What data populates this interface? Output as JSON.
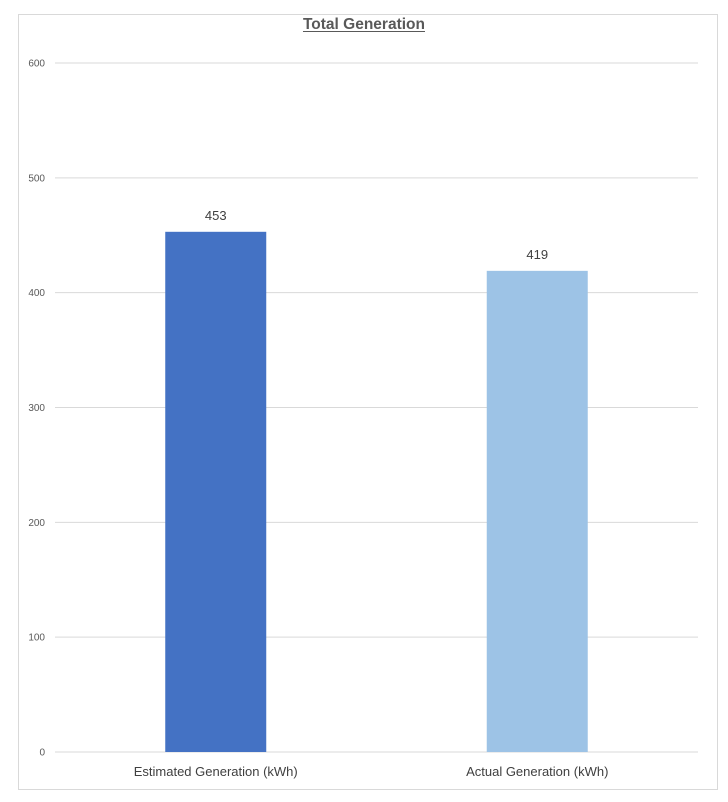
{
  "chart_data": {
    "type": "bar",
    "title": "Total Generation",
    "categories": [
      "Estimated Generation (kWh)",
      "Actual Generation (kWh)"
    ],
    "values": [
      453,
      419
    ],
    "data_labels": [
      "453",
      "419"
    ],
    "bar_colors": [
      "#4472c4",
      "#9dc3e6"
    ],
    "ylim": [
      0,
      600
    ],
    "yticks": [
      0,
      100,
      200,
      300,
      400,
      500,
      600
    ],
    "ytick_labels": [
      "0",
      "100",
      "200",
      "300",
      "400",
      "500",
      "600"
    ],
    "xlabel": "",
    "ylabel": "",
    "grid": true,
    "legend": "none"
  }
}
